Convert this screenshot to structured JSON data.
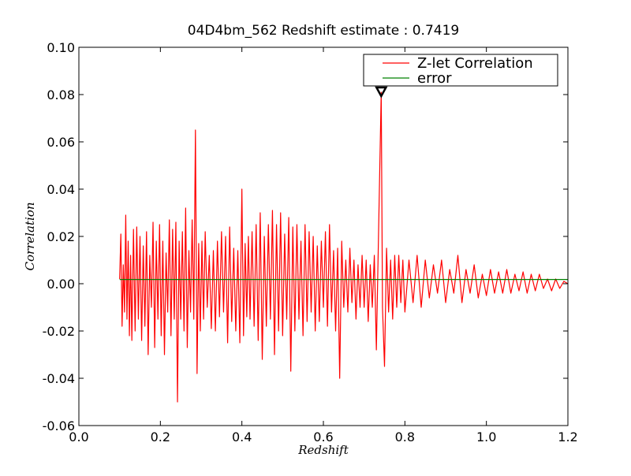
{
  "chart_data": {
    "type": "line",
    "title": "04D4bm_562 Redshift estimate : 0.7419",
    "xlabel": "Redshift",
    "ylabel": "Correlation",
    "xlim": [
      0.0,
      1.2
    ],
    "ylim": [
      -0.06,
      0.1
    ],
    "x_ticks": [
      "0.0",
      "0.2",
      "0.4",
      "0.6",
      "0.8",
      "1.0",
      "1.2"
    ],
    "y_ticks": [
      "0.10",
      "0.08",
      "0.06",
      "0.04",
      "0.02",
      "0.00",
      "-0.02",
      "-0.04",
      "-0.06"
    ],
    "legend_position": "top-right",
    "grid": false,
    "series": [
      {
        "name": "Z-let Correlation",
        "color": "#ff0000",
        "x": [
          0.1,
          0.103,
          0.106,
          0.109,
          0.112,
          0.115,
          0.118,
          0.121,
          0.124,
          0.127,
          0.13,
          0.134,
          0.138,
          0.142,
          0.146,
          0.15,
          0.154,
          0.158,
          0.162,
          0.166,
          0.17,
          0.174,
          0.178,
          0.182,
          0.186,
          0.19,
          0.194,
          0.198,
          0.202,
          0.206,
          0.21,
          0.214,
          0.218,
          0.222,
          0.226,
          0.23,
          0.234,
          0.238,
          0.242,
          0.246,
          0.25,
          0.254,
          0.258,
          0.262,
          0.266,
          0.27,
          0.274,
          0.278,
          0.282,
          0.286,
          0.29,
          0.294,
          0.298,
          0.302,
          0.306,
          0.31,
          0.315,
          0.32,
          0.325,
          0.33,
          0.335,
          0.34,
          0.345,
          0.35,
          0.355,
          0.36,
          0.365,
          0.37,
          0.375,
          0.38,
          0.385,
          0.39,
          0.395,
          0.4,
          0.404,
          0.408,
          0.412,
          0.416,
          0.42,
          0.425,
          0.43,
          0.435,
          0.44,
          0.445,
          0.45,
          0.455,
          0.46,
          0.465,
          0.47,
          0.475,
          0.48,
          0.485,
          0.49,
          0.495,
          0.5,
          0.505,
          0.51,
          0.515,
          0.52,
          0.525,
          0.53,
          0.535,
          0.54,
          0.545,
          0.55,
          0.555,
          0.56,
          0.565,
          0.57,
          0.575,
          0.58,
          0.585,
          0.59,
          0.595,
          0.6,
          0.605,
          0.61,
          0.615,
          0.62,
          0.625,
          0.63,
          0.635,
          0.64,
          0.645,
          0.65,
          0.655,
          0.66,
          0.665,
          0.67,
          0.675,
          0.68,
          0.685,
          0.69,
          0.695,
          0.7,
          0.705,
          0.71,
          0.715,
          0.72,
          0.725,
          0.73,
          0.735,
          0.7419,
          0.745,
          0.75,
          0.755,
          0.76,
          0.765,
          0.77,
          0.775,
          0.78,
          0.785,
          0.79,
          0.795,
          0.8,
          0.81,
          0.82,
          0.83,
          0.84,
          0.85,
          0.86,
          0.87,
          0.88,
          0.89,
          0.9,
          0.91,
          0.92,
          0.93,
          0.94,
          0.95,
          0.96,
          0.97,
          0.98,
          0.99,
          1.0,
          1.01,
          1.02,
          1.03,
          1.04,
          1.05,
          1.06,
          1.07,
          1.08,
          1.09,
          1.1,
          1.11,
          1.12,
          1.13,
          1.14,
          1.15,
          1.16,
          1.17,
          1.18,
          1.19,
          1.2
        ],
        "y": [
          0.002,
          0.021,
          -0.018,
          0.008,
          -0.012,
          0.029,
          -0.015,
          0.018,
          -0.022,
          0.012,
          -0.024,
          0.023,
          -0.02,
          0.024,
          -0.015,
          0.02,
          -0.024,
          0.016,
          -0.018,
          0.022,
          -0.03,
          0.012,
          -0.01,
          0.026,
          -0.027,
          0.018,
          -0.015,
          0.025,
          -0.022,
          0.018,
          -0.03,
          0.013,
          -0.012,
          0.027,
          -0.022,
          0.023,
          -0.015,
          0.026,
          -0.05,
          0.018,
          -0.015,
          0.022,
          -0.02,
          0.032,
          -0.027,
          0.014,
          -0.012,
          0.027,
          -0.015,
          0.065,
          -0.038,
          0.017,
          -0.02,
          0.018,
          -0.015,
          0.022,
          -0.01,
          0.012,
          -0.019,
          0.014,
          -0.02,
          0.018,
          -0.014,
          0.022,
          -0.012,
          0.02,
          -0.025,
          0.024,
          -0.016,
          0.015,
          -0.02,
          0.014,
          -0.025,
          0.04,
          -0.022,
          0.017,
          -0.014,
          0.02,
          -0.015,
          0.022,
          -0.018,
          0.025,
          -0.024,
          0.03,
          -0.032,
          0.02,
          -0.018,
          0.025,
          -0.015,
          0.031,
          -0.03,
          0.025,
          -0.02,
          0.03,
          -0.022,
          0.021,
          -0.015,
          0.028,
          -0.037,
          0.024,
          -0.02,
          0.025,
          -0.015,
          0.018,
          -0.022,
          0.025,
          -0.016,
          0.022,
          -0.012,
          0.02,
          -0.02,
          0.016,
          -0.016,
          0.018,
          -0.01,
          0.022,
          -0.018,
          0.025,
          -0.012,
          0.014,
          -0.02,
          0.015,
          -0.04,
          0.018,
          -0.01,
          0.01,
          -0.012,
          0.015,
          -0.008,
          0.01,
          -0.015,
          0.008,
          -0.01,
          0.012,
          -0.01,
          0.01,
          -0.016,
          0.008,
          -0.01,
          0.012,
          -0.028,
          0.018,
          0.081,
          -0.01,
          -0.035,
          0.015,
          -0.012,
          0.01,
          -0.015,
          0.012,
          -0.01,
          0.012,
          -0.008,
          0.01,
          -0.012,
          0.01,
          -0.008,
          0.012,
          -0.01,
          0.01,
          -0.006,
          0.008,
          -0.004,
          0.01,
          -0.008,
          0.006,
          -0.004,
          0.012,
          -0.008,
          0.006,
          -0.004,
          0.008,
          -0.006,
          0.004,
          -0.005,
          0.006,
          -0.004,
          0.005,
          -0.004,
          0.006,
          -0.004,
          0.004,
          -0.003,
          0.005,
          -0.004,
          0.004,
          -0.003,
          0.004,
          -0.002,
          0.002,
          -0.003,
          0.002,
          -0.002,
          0.001,
          0.0
        ]
      },
      {
        "name": "error",
        "color": "#008000",
        "x": [
          0.1,
          1.2
        ],
        "y": [
          0.0018,
          0.0018
        ]
      }
    ],
    "annotation": {
      "label": "peak marker",
      "x": 0.7419,
      "y": 0.081,
      "marker": "triangle-down"
    }
  }
}
